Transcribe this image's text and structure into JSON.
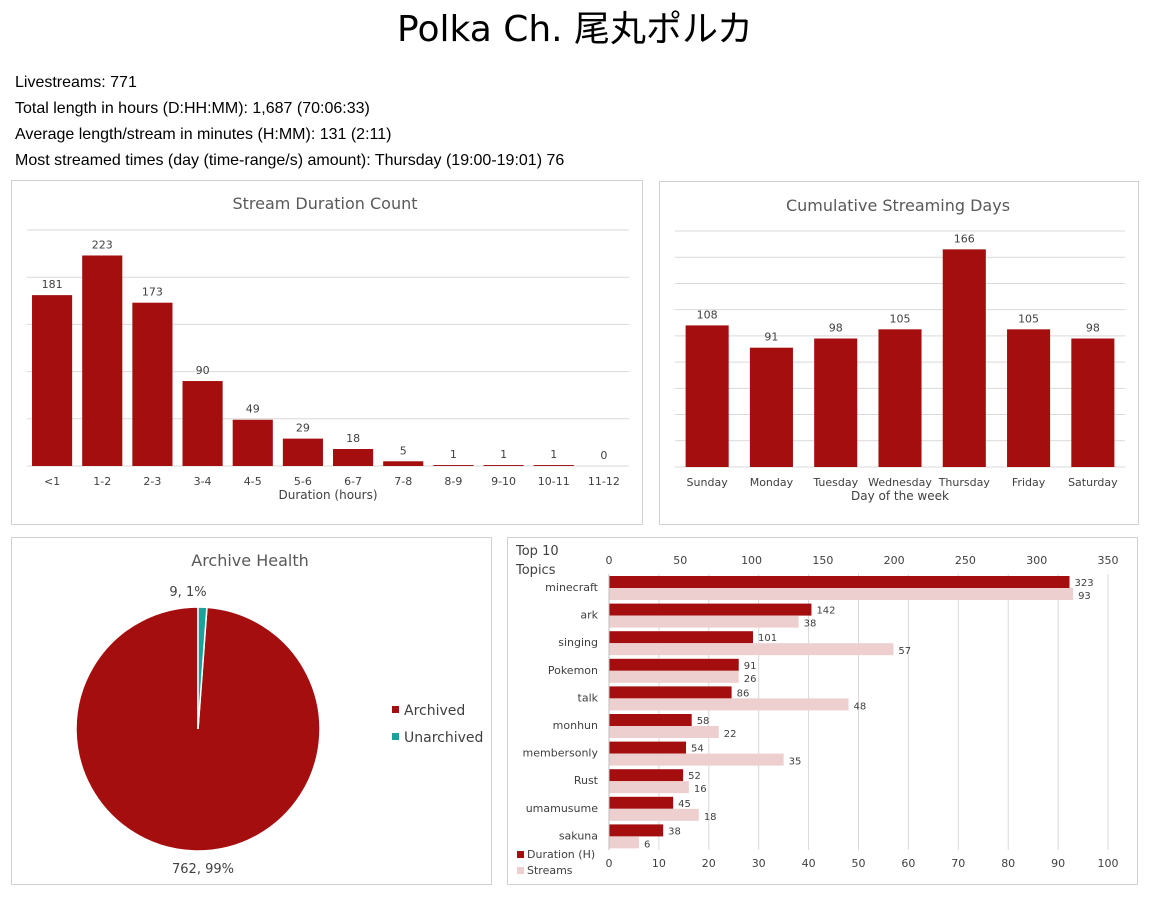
{
  "page": {
    "title": "Polka Ch. 尾丸ポルカ",
    "stats": [
      "Livestreams: 771",
      "Total length in hours (D:HH:MM): 1,687 (70:06:33)",
      "Average length/stream in minutes (H:MM): 131 (2:11)",
      "Most streamed times (day (time-range/s) amount): Thursday (19:00-19:01) 76"
    ]
  },
  "colors": {
    "primary": "#a50e0e",
    "secondary": "#edcfcf",
    "teal": "#1aa39a",
    "grid": "#d9d9d9",
    "text": "#595959"
  },
  "chart_data": [
    {
      "id": "duration",
      "type": "bar",
      "title": "Stream Duration Count",
      "xlabel": "Duration (hours)",
      "ylabel": "",
      "categories": [
        "<1",
        "1-2",
        "2-3",
        "3-4",
        "4-5",
        "5-6",
        "6-7",
        "7-8",
        "8-9",
        "9-10",
        "10-11",
        "11-12"
      ],
      "values": [
        181,
        223,
        173,
        90,
        49,
        29,
        18,
        5,
        1,
        1,
        1,
        0
      ],
      "ylim": [
        0,
        250
      ],
      "grid": true,
      "data_labels": true
    },
    {
      "id": "days",
      "type": "bar",
      "title": "Cumulative Streaming Days",
      "xlabel": "Day of the week",
      "ylabel": "",
      "categories": [
        "Sunday",
        "Monday",
        "Tuesday",
        "Wednesday",
        "Thursday",
        "Friday",
        "Saturday"
      ],
      "values": [
        108,
        91,
        98,
        105,
        166,
        105,
        98
      ],
      "ylim": [
        0,
        180
      ],
      "grid": true,
      "data_labels": true
    },
    {
      "id": "archive",
      "type": "pie",
      "title": "Archive Health",
      "labels": [
        "Archived",
        "Unarchived"
      ],
      "values": [
        762,
        9
      ],
      "percents": [
        "99%",
        "1%"
      ],
      "legend": "right"
    },
    {
      "id": "topics",
      "type": "bar",
      "orientation": "horizontal",
      "title": "Top 10 Topics",
      "categories": [
        "minecraft",
        "ark",
        "singing",
        "Pokemon",
        "talk",
        "monhun",
        "membersonly",
        "Rust",
        "umamusume",
        "sakuna"
      ],
      "series": [
        {
          "name": "Duration (H)",
          "axis": "top",
          "values": [
            323,
            142,
            101,
            91,
            86,
            58,
            54,
            52,
            45,
            38
          ]
        },
        {
          "name": "Streams",
          "axis": "bottom",
          "values": [
            93,
            38,
            57,
            26,
            48,
            22,
            35,
            16,
            18,
            6
          ]
        }
      ],
      "top_axis": {
        "min": 0,
        "max": 350,
        "ticks": [
          0,
          50,
          100,
          150,
          200,
          250,
          300,
          350
        ]
      },
      "bottom_axis": {
        "min": 0,
        "max": 100,
        "ticks": [
          0,
          10,
          20,
          30,
          40,
          50,
          60,
          70,
          80,
          90,
          100
        ]
      },
      "legend": "bottom-left"
    }
  ]
}
